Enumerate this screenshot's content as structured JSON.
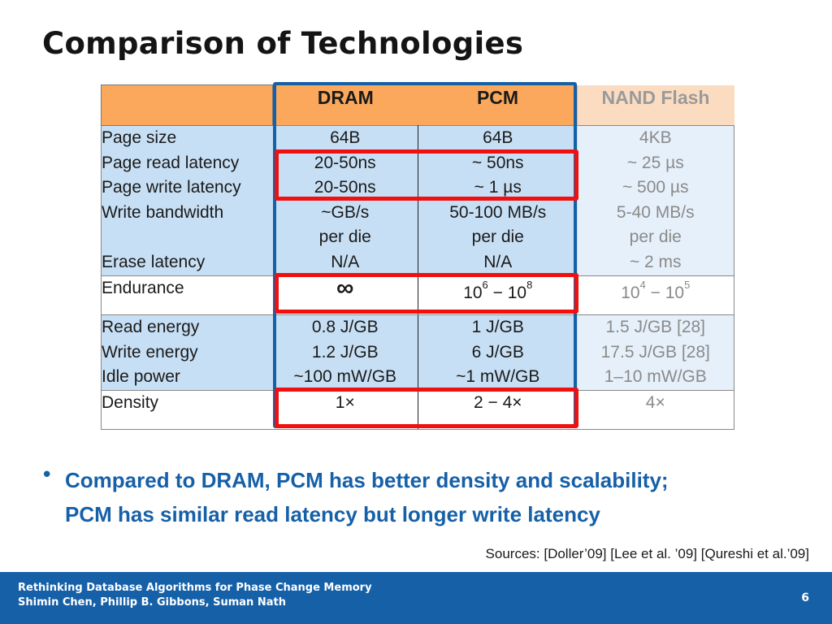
{
  "title": "Comparison of Technologies",
  "table": {
    "headers": [
      "",
      "DRAM",
      "PCM",
      "NAND  Flash"
    ],
    "rows": [
      {
        "labels": [
          "Page  size",
          "Page  read  latency",
          "Page  write latency",
          "Write bandwidth",
          "",
          "Erase  latency"
        ],
        "dram": [
          "64B",
          "20-50ns",
          "20-50ns",
          "~GB/s",
          "per die",
          "N/A"
        ],
        "pcm": [
          "64B",
          "~ 50ns",
          "~ 1 µs",
          "50-100 MB/s",
          "per die",
          "N/A"
        ],
        "nand": [
          "4KB",
          "~ 25 µs",
          "~ 500 µs",
          "5-40 MB/s",
          "per die",
          "~ 2 ms"
        ]
      },
      {
        "label": "Endurance",
        "dram": "∞",
        "pcm": {
          "base1": "10",
          "exp1": "6",
          "sep": " − ",
          "base2": "10",
          "exp2": "8"
        },
        "nand": {
          "base1": "10",
          "exp1": "4",
          "sep": " − ",
          "base2": "10",
          "exp2": "5"
        }
      },
      {
        "labels": [
          "Read  energy",
          "Write energy",
          "Idle power"
        ],
        "dram": [
          "0.8 J/GB",
          "1.2 J/GB",
          "~100 mW/GB"
        ],
        "pcm": [
          "1 J/GB",
          "6 J/GB",
          "~1 mW/GB"
        ],
        "nand": [
          "1.5 J/GB [28]",
          "17.5 J/GB [28]",
          "1–10 mW/GB"
        ]
      },
      {
        "label": "Density",
        "dram": "1×",
        "pcm": "2 − 4×",
        "nand": "4×"
      }
    ]
  },
  "bullet": {
    "symbol": "•",
    "line1": "Compared to DRAM, PCM has better density and scalability;",
    "line2": "PCM has similar read latency but longer write latency"
  },
  "sources": "Sources: [Doller’09] [Lee et al. ’09] [Qureshi et al.’09]",
  "footer": {
    "line1": "Rethinking Database Algorithms for Phase Change Memory",
    "line2": "Shimin Chen, Phillip B. Gibbons, Suman Nath",
    "page": "6"
  },
  "colors": {
    "accent_blue": "#1660a8",
    "header_orange": "#fba85c",
    "header_nand": "#fcdcc0",
    "cell_blue": "#c7dff4",
    "highlight_red": "#f01010"
  }
}
